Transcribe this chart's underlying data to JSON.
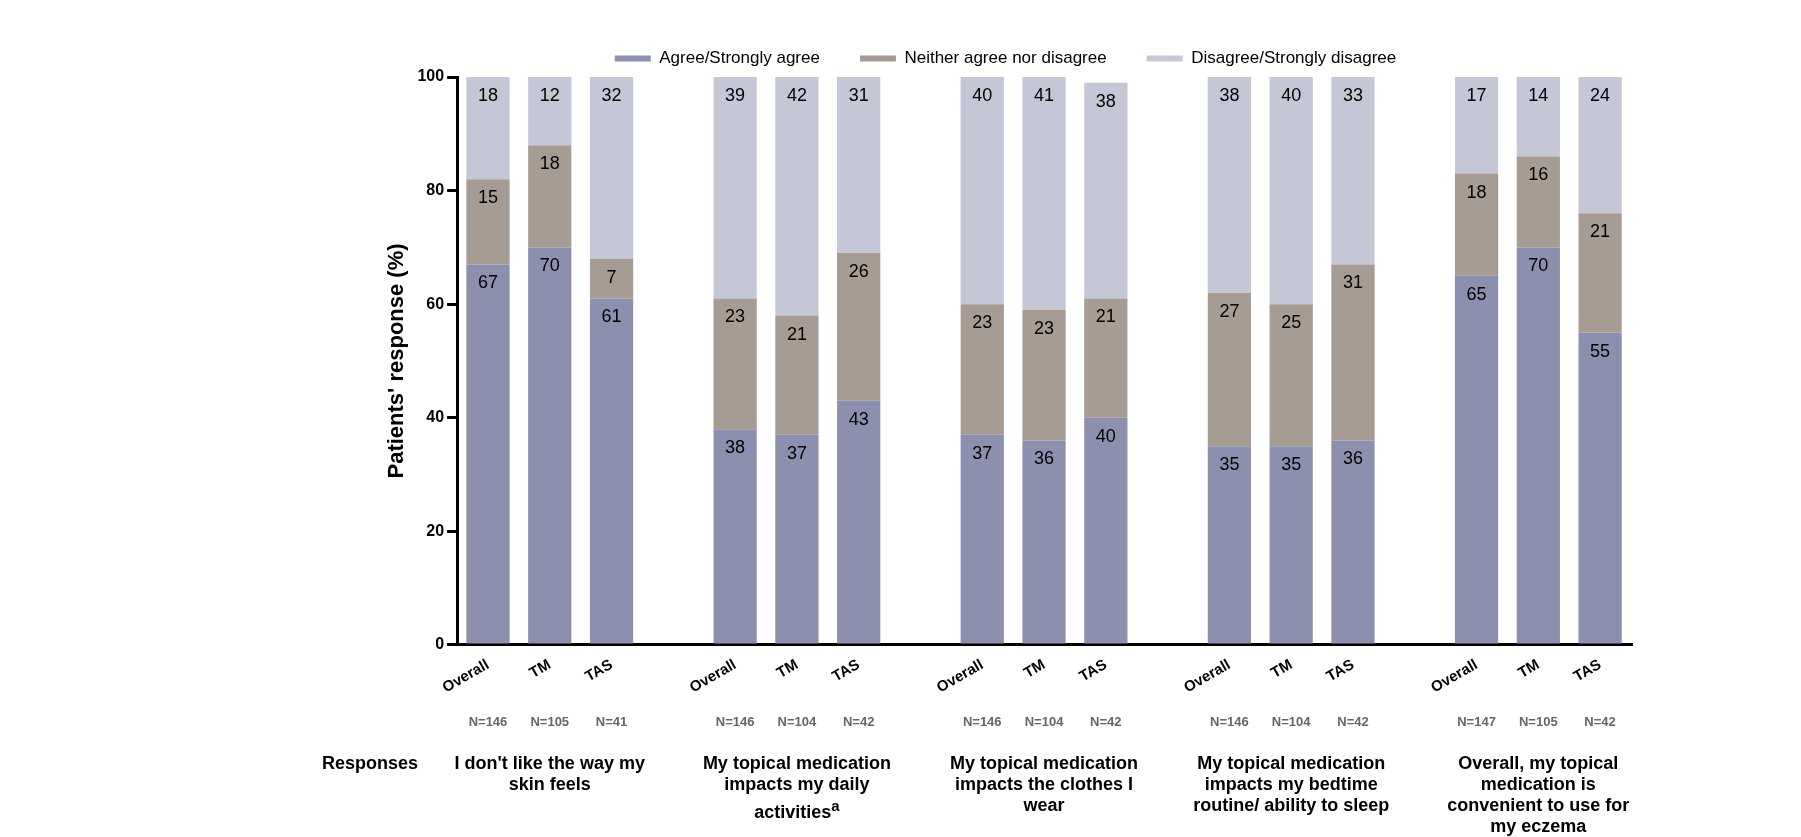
{
  "chart_data": {
    "type": "bar",
    "stacked": true,
    "data_labels": true,
    "legend": "top",
    "grid": false,
    "ylabel": "Patients' response (%)",
    "ylim": [
      0,
      100
    ],
    "yticks": [
      0,
      20,
      40,
      60,
      80,
      100
    ],
    "categories": [
      "Overall",
      "TM",
      "TAS",
      null,
      "Overall",
      "TM",
      "TAS",
      null,
      "Overall",
      "TM",
      "TAS",
      null,
      "Overall",
      "TM",
      "TAS",
      null,
      "Overall",
      "TM",
      "TAS"
    ],
    "series": [
      {
        "name": "Agree/Strongly agree",
        "color": "#8c90ae",
        "values": [
          67,
          70,
          61,
          null,
          38,
          37,
          43,
          null,
          37,
          36,
          40,
          null,
          35,
          35,
          36,
          null,
          65,
          70,
          55
        ]
      },
      {
        "name": "Neither agree nor disagree",
        "color": "#a69c94",
        "values": [
          15,
          18,
          7,
          null,
          23,
          21,
          26,
          null,
          23,
          23,
          21,
          null,
          27,
          25,
          31,
          null,
          18,
          16,
          21
        ]
      },
      {
        "name": "Disagree/Strongly disagree",
        "color": "#c6c7d6",
        "values": [
          18,
          12,
          32,
          null,
          39,
          42,
          31,
          null,
          40,
          41,
          38,
          null,
          38,
          40,
          33,
          null,
          17,
          14,
          24
        ]
      }
    ],
    "annotations": [
      "N=146",
      "N=105",
      "N=41",
      "N=146",
      "N=104",
      "N=42",
      "N=146",
      "N=104",
      "N=42",
      "N=146",
      "N=104",
      "N=42",
      "N=147",
      "N=105",
      "N=42",
      "Responses",
      "I don't like the way my skin feels",
      "My topical medication impacts my daily activities$^{a}$",
      "My topical medication impacts the clothes I wear",
      "My topical medication impacts my bedtime routine/ ability to sleep",
      "Overall, my topical medication is convenient to use for my eczema"
    ]
  }
}
